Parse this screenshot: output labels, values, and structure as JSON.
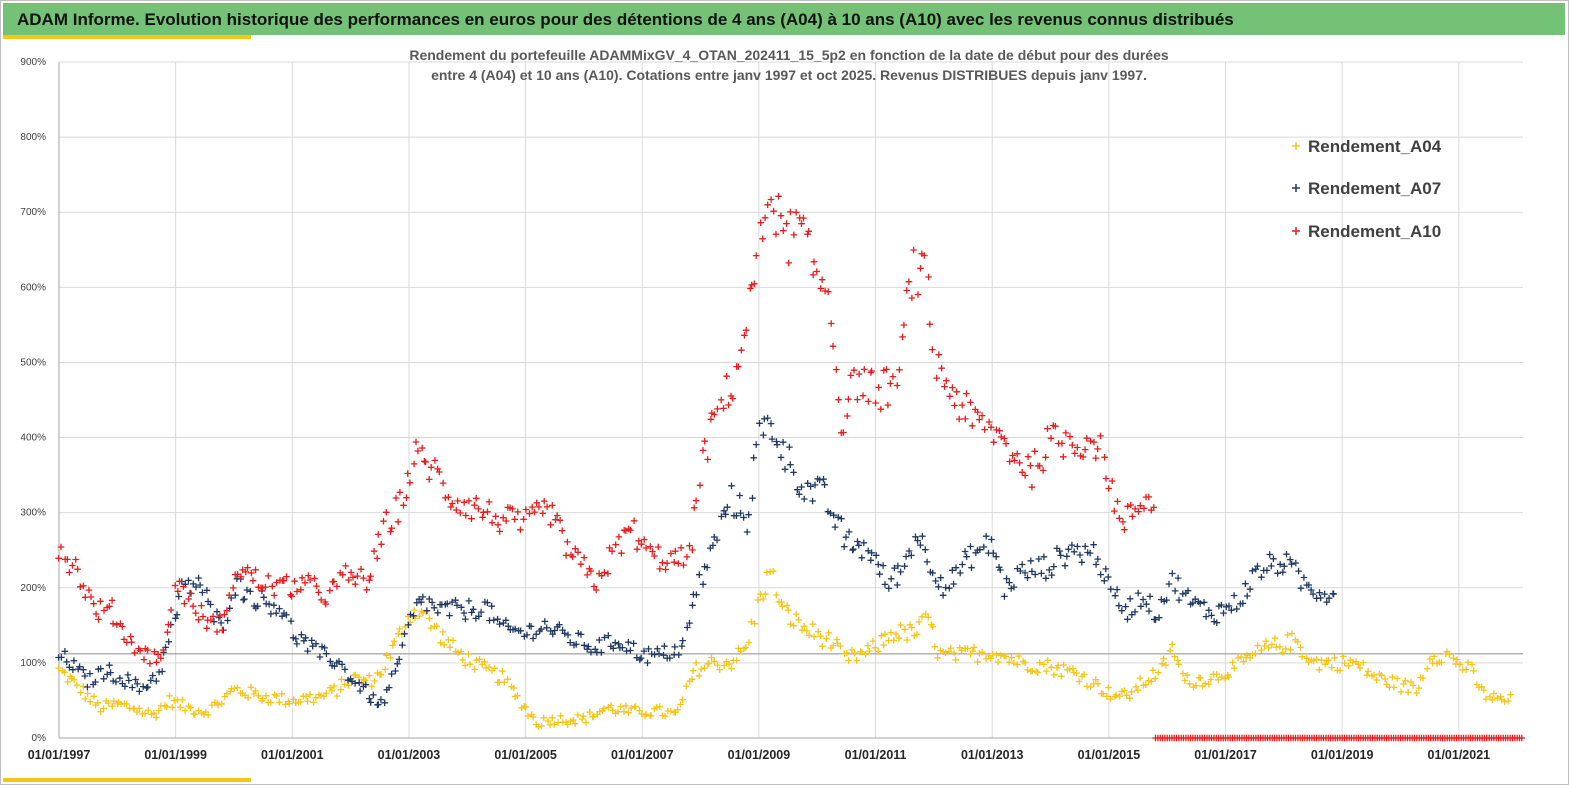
{
  "header": {
    "title": "ADAM Informe. Evolution historique des performances en euros pour des détentions de 4 ans (A04) à 10 ans (A10) avec les revenus connus distribués"
  },
  "chart_data": {
    "type": "scatter",
    "title_lines": [
      "Rendement du portefeuille ADAMMixGV_4_OTAN_202411_15_5p2  en fonction de la date de début pour des durées",
      "entre 4 (A04) et 10 ans (A10). Cotations  entre janv 1997 et oct 2025. Revenus DISTRIBUES depuis janv 1997."
    ],
    "xlabel": "",
    "ylabel": "",
    "xlim": [
      1997.0,
      2022.1
    ],
    "ylim": [
      0,
      900
    ],
    "y_ticks": [
      0,
      100,
      200,
      300,
      400,
      500,
      600,
      700,
      800,
      900
    ],
    "y_tick_labels": [
      "0%",
      "100%",
      "200%",
      "300%",
      "400%",
      "500%",
      "600%",
      "700%",
      "800%",
      "900%"
    ],
    "x_ticks": [
      1997,
      1999,
      2001,
      2003,
      2005,
      2007,
      2009,
      2011,
      2013,
      2015,
      2017,
      2019,
      2021
    ],
    "x_tick_labels": [
      "01/01/1997",
      "01/01/1999",
      "01/01/2001",
      "01/01/2003",
      "01/01/2005",
      "01/01/2007",
      "01/01/2009",
      "01/01/2011",
      "01/01/2013",
      "01/01/2015",
      "01/01/2017",
      "01/01/2019",
      "01/01/2021"
    ],
    "reference_line": 112,
    "grid": true,
    "legend_position": "top-right",
    "series": [
      {
        "name": "Rendement_A04",
        "color": "#f5c518",
        "x_range": [
          1997.0,
          2021.9
        ],
        "anchors": [
          [
            1997.0,
            90
          ],
          [
            1997.3,
            70
          ],
          [
            1997.7,
            40
          ],
          [
            1998.0,
            45
          ],
          [
            1998.3,
            40
          ],
          [
            1998.6,
            30
          ],
          [
            1998.9,
            50
          ],
          [
            1999.2,
            40
          ],
          [
            1999.5,
            35
          ],
          [
            1999.8,
            50
          ],
          [
            2000.0,
            65
          ],
          [
            2000.5,
            55
          ],
          [
            2001.0,
            50
          ],
          [
            2001.5,
            55
          ],
          [
            2001.8,
            65
          ],
          [
            2002.0,
            80
          ],
          [
            2002.3,
            75
          ],
          [
            2002.5,
            85
          ],
          [
            2002.8,
            130
          ],
          [
            2003.0,
            165
          ],
          [
            2003.2,
            170
          ],
          [
            2003.5,
            140
          ],
          [
            2003.8,
            115
          ],
          [
            2004.2,
            95
          ],
          [
            2004.6,
            80
          ],
          [
            2004.9,
            50
          ],
          [
            2005.2,
            20
          ],
          [
            2005.5,
            25
          ],
          [
            2006.0,
            25
          ],
          [
            2006.4,
            40
          ],
          [
            2006.8,
            35
          ],
          [
            2007.3,
            35
          ],
          [
            2007.6,
            30
          ],
          [
            2007.9,
            90
          ],
          [
            2008.2,
            100
          ],
          [
            2008.5,
            100
          ],
          [
            2008.8,
            120
          ],
          [
            2009.0,
            185
          ],
          [
            2009.2,
            220
          ],
          [
            2009.4,
            170
          ],
          [
            2009.8,
            145
          ],
          [
            2010.2,
            130
          ],
          [
            2010.5,
            105
          ],
          [
            2010.9,
            115
          ],
          [
            2011.3,
            140
          ],
          [
            2011.7,
            140
          ],
          [
            2011.9,
            160
          ],
          [
            2012.1,
            110
          ],
          [
            2012.5,
            110
          ],
          [
            2013.0,
            115
          ],
          [
            2013.5,
            100
          ],
          [
            2014.0,
            95
          ],
          [
            2014.5,
            85
          ],
          [
            2015.0,
            60
          ],
          [
            2015.3,
            55
          ],
          [
            2015.6,
            75
          ],
          [
            2015.9,
            90
          ],
          [
            2016.1,
            120
          ],
          [
            2016.3,
            75
          ],
          [
            2016.8,
            80
          ],
          [
            2017.3,
            100
          ],
          [
            2017.7,
            120
          ],
          [
            2018.0,
            125
          ],
          [
            2018.2,
            130
          ],
          [
            2018.5,
            100
          ],
          [
            2018.9,
            100
          ],
          [
            2019.2,
            100
          ],
          [
            2019.6,
            80
          ],
          [
            2020.0,
            70
          ],
          [
            2020.3,
            65
          ],
          [
            2020.5,
            110
          ],
          [
            2020.8,
            110
          ],
          [
            2021.0,
            100
          ],
          [
            2021.2,
            90
          ],
          [
            2021.4,
            60
          ],
          [
            2021.7,
            50
          ],
          [
            2021.9,
            50
          ]
        ]
      },
      {
        "name": "Rendement_A07",
        "color": "#203864",
        "x_range": [
          1997.0,
          2018.9
        ],
        "anchors": [
          [
            1997.0,
            110
          ],
          [
            1997.2,
            100
          ],
          [
            1997.5,
            75
          ],
          [
            1997.8,
            90
          ],
          [
            1998.2,
            75
          ],
          [
            1998.4,
            65
          ],
          [
            1998.7,
            85
          ],
          [
            1998.9,
            130
          ],
          [
            1999.1,
            195
          ],
          [
            1999.4,
            210
          ],
          [
            1999.6,
            170
          ],
          [
            1999.8,
            145
          ],
          [
            2000.0,
            205
          ],
          [
            2000.4,
            185
          ],
          [
            2000.8,
            175
          ],
          [
            2001.0,
            140
          ],
          [
            2001.4,
            115
          ],
          [
            2001.8,
            100
          ],
          [
            2002.0,
            80
          ],
          [
            2002.3,
            60
          ],
          [
            2002.5,
            40
          ],
          [
            2002.8,
            90
          ],
          [
            2003.0,
            150
          ],
          [
            2003.2,
            185
          ],
          [
            2003.5,
            170
          ],
          [
            2004.0,
            170
          ],
          [
            2004.3,
            175
          ],
          [
            2004.6,
            145
          ],
          [
            2005.0,
            140
          ],
          [
            2005.3,
            150
          ],
          [
            2005.7,
            135
          ],
          [
            2006.2,
            120
          ],
          [
            2006.6,
            130
          ],
          [
            2007.0,
            110
          ],
          [
            2007.3,
            110
          ],
          [
            2007.7,
            120
          ],
          [
            2007.9,
            190
          ],
          [
            2008.2,
            250
          ],
          [
            2008.5,
            320
          ],
          [
            2008.8,
            290
          ],
          [
            2009.0,
            400
          ],
          [
            2009.2,
            420
          ],
          [
            2009.5,
            370
          ],
          [
            2009.8,
            330
          ],
          [
            2010.1,
            325
          ],
          [
            2010.5,
            260
          ],
          [
            2010.9,
            250
          ],
          [
            2011.2,
            205
          ],
          [
            2011.5,
            230
          ],
          [
            2011.7,
            275
          ],
          [
            2011.9,
            240
          ],
          [
            2012.2,
            200
          ],
          [
            2012.6,
            240
          ],
          [
            2013.0,
            260
          ],
          [
            2013.2,
            200
          ],
          [
            2013.5,
            220
          ],
          [
            2014.0,
            230
          ],
          [
            2014.3,
            250
          ],
          [
            2014.8,
            245
          ],
          [
            2015.0,
            200
          ],
          [
            2015.3,
            170
          ],
          [
            2015.6,
            190
          ],
          [
            2015.8,
            165
          ],
          [
            2016.1,
            210
          ],
          [
            2016.4,
            180
          ],
          [
            2016.8,
            165
          ],
          [
            2017.2,
            180
          ],
          [
            2017.6,
            225
          ],
          [
            2018.0,
            235
          ],
          [
            2018.4,
            200
          ],
          [
            2018.7,
            195
          ],
          [
            2018.9,
            190
          ]
        ]
      },
      {
        "name": "Rendement_A10",
        "color": "#e81c1c",
        "x_range": [
          1997.0,
          2015.8
        ],
        "anchors": [
          [
            1997.0,
            255
          ],
          [
            1997.3,
            225
          ],
          [
            1997.6,
            170
          ],
          [
            1997.9,
            170
          ],
          [
            1998.2,
            130
          ],
          [
            1998.5,
            110
          ],
          [
            1998.8,
            110
          ],
          [
            1999.0,
            210
          ],
          [
            1999.3,
            175
          ],
          [
            1999.6,
            150
          ],
          [
            1999.9,
            160
          ],
          [
            2000.0,
            230
          ],
          [
            2000.5,
            205
          ],
          [
            2000.9,
            200
          ],
          [
            2001.2,
            205
          ],
          [
            2001.6,
            190
          ],
          [
            2001.9,
            215
          ],
          [
            2002.3,
            210
          ],
          [
            2002.6,
            280
          ],
          [
            2002.9,
            320
          ],
          [
            2003.1,
            375
          ],
          [
            2003.4,
            360
          ],
          [
            2003.7,
            320
          ],
          [
            2004.2,
            305
          ],
          [
            2004.6,
            290
          ],
          [
            2005.0,
            285
          ],
          [
            2005.4,
            305
          ],
          [
            2005.7,
            255
          ],
          [
            2006.0,
            225
          ],
          [
            2006.2,
            205
          ],
          [
            2006.5,
            245
          ],
          [
            2006.8,
            280
          ],
          [
            2007.1,
            245
          ],
          [
            2007.5,
            235
          ],
          [
            2007.8,
            240
          ],
          [
            2008.0,
            360
          ],
          [
            2008.3,
            440
          ],
          [
            2008.6,
            480
          ],
          [
            2008.9,
            600
          ],
          [
            2009.2,
            740
          ],
          [
            2009.4,
            660
          ],
          [
            2009.7,
            680
          ],
          [
            2010.0,
            610
          ],
          [
            2010.2,
            600
          ],
          [
            2010.4,
            420
          ],
          [
            2010.7,
            480
          ],
          [
            2011.0,
            460
          ],
          [
            2011.4,
            475
          ],
          [
            2011.6,
            620
          ],
          [
            2011.9,
            610
          ],
          [
            2012.0,
            500
          ],
          [
            2012.4,
            450
          ],
          [
            2012.7,
            420
          ],
          [
            2013.0,
            410
          ],
          [
            2013.4,
            375
          ],
          [
            2013.7,
            355
          ],
          [
            2014.0,
            395
          ],
          [
            2014.4,
            395
          ],
          [
            2014.8,
            395
          ],
          [
            2015.0,
            350
          ],
          [
            2015.2,
            280
          ],
          [
            2015.4,
            300
          ],
          [
            2015.6,
            320
          ],
          [
            2015.8,
            320
          ]
        ]
      }
    ],
    "baseline_markers": {
      "name": "Rendement_A10",
      "color": "#e81c1c",
      "x_range": [
        2015.8,
        2022.1
      ],
      "value": 0
    }
  }
}
